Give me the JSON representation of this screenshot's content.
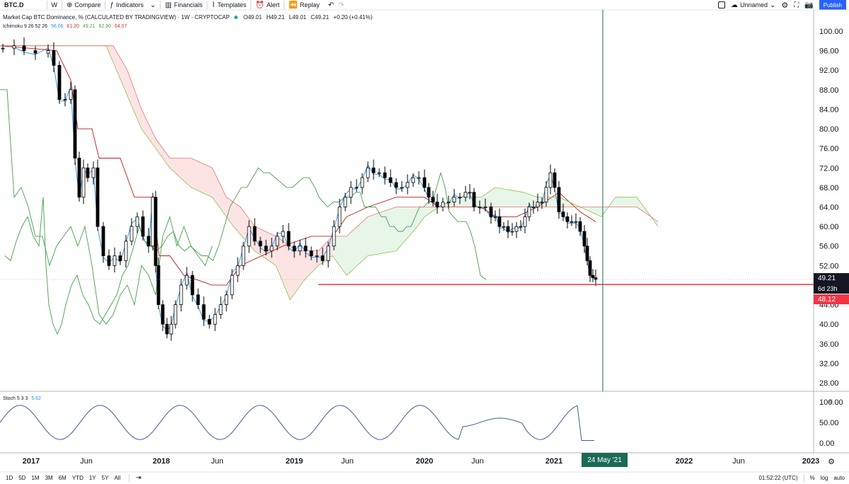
{
  "toolbar": {
    "symbol": "BTC.D",
    "interval": "W",
    "compare": "Compare",
    "indicators": "Indicators",
    "financials": "Financials",
    "templates": "Templates",
    "alert": "Alert",
    "replay": "Replay",
    "layout_name": "Unnamed",
    "publish": "Publish"
  },
  "legend": {
    "title": "Market Cap BTC Dominance, % (CALCULATED BY TRADINGVIEW) · 1W · CRYPTOCAP",
    "open": "O49.01",
    "high": "H49.21",
    "low": "L49.01",
    "close": "C49.21",
    "change": "+0.20 (+0.41%)",
    "ichimoku_label": "Ichimoku 9 26 52 26",
    "ichimoku_values": [
      "56.06",
      "61.20",
      "49.21",
      "62.90",
      "64.07"
    ],
    "stoch_label": "Stoch 5 3 3",
    "stoch_value": "5.62"
  },
  "colors": {
    "up": "#ffffff",
    "down": "#000000",
    "conversion": "#2196f3",
    "base": "#b71c1c",
    "lagging": "#43a047",
    "cloud_bull": "#e8f5e9",
    "cloud_bear": "#fde4e4",
    "vline": "#1b6b57",
    "hline": "#e53935",
    "stoch": "#3f5d9e"
  },
  "price_axis": {
    "ticks": [
      "100.00",
      "96.00",
      "92.00",
      "88.00",
      "84.00",
      "80.00",
      "76.00",
      "72.00",
      "68.00",
      "64.00",
      "60.00",
      "56.00",
      "52.00",
      "48.00",
      "44.00",
      "40.00",
      "36.00",
      "32.00",
      "28.00"
    ],
    "last_price": "49.21",
    "countdown": "6d 23h",
    "hline_price": "48.12"
  },
  "stoch_axis": {
    "ticks": [
      "100.00",
      "50.00",
      "0.00"
    ]
  },
  "time_axis": {
    "labels": [
      "2017",
      "Jun",
      "2018",
      "Jun",
      "2019",
      "Jun",
      "2020",
      "Jun",
      "2021",
      "2022",
      "Jun",
      "2023"
    ],
    "cursor_date": "24 May '21"
  },
  "bottom": {
    "ranges": [
      "1D",
      "5D",
      "1M",
      "3M",
      "6M",
      "YTD",
      "1Y",
      "5Y",
      "All"
    ],
    "time": "01:52:22 (UTC)",
    "percent": "%",
    "log": "log",
    "auto": "auto"
  },
  "chart_data": [
    {
      "type": "candlestick",
      "title": "Market Cap BTC Dominance, %",
      "x": [
        "2017",
        "2017-06",
        "2018",
        "2018-06",
        "2019",
        "2019-06",
        "2020",
        "2020-06",
        "2021",
        "2021-05-24"
      ],
      "close_approx": [
        96.5,
        86,
        38,
        40,
        52,
        70,
        68,
        60,
        70,
        49.21
      ],
      "ylim": [
        26,
        102
      ],
      "hline": 48.12,
      "series": [
        {
          "name": "Ichimoku conversion",
          "values_last": 56.06
        },
        {
          "name": "Ichimoku base",
          "values_last": 61.2
        },
        {
          "name": "Ichimoku lagging",
          "values_last": 49.21
        },
        {
          "name": "Ichimoku lead A",
          "values_last": 62.9
        },
        {
          "name": "Ichimoku lead B",
          "values_last": 64.07
        }
      ]
    },
    {
      "type": "line",
      "title": "Stoch 5 3 3",
      "ylim": [
        0,
        100
      ],
      "last": 5.62
    }
  ]
}
